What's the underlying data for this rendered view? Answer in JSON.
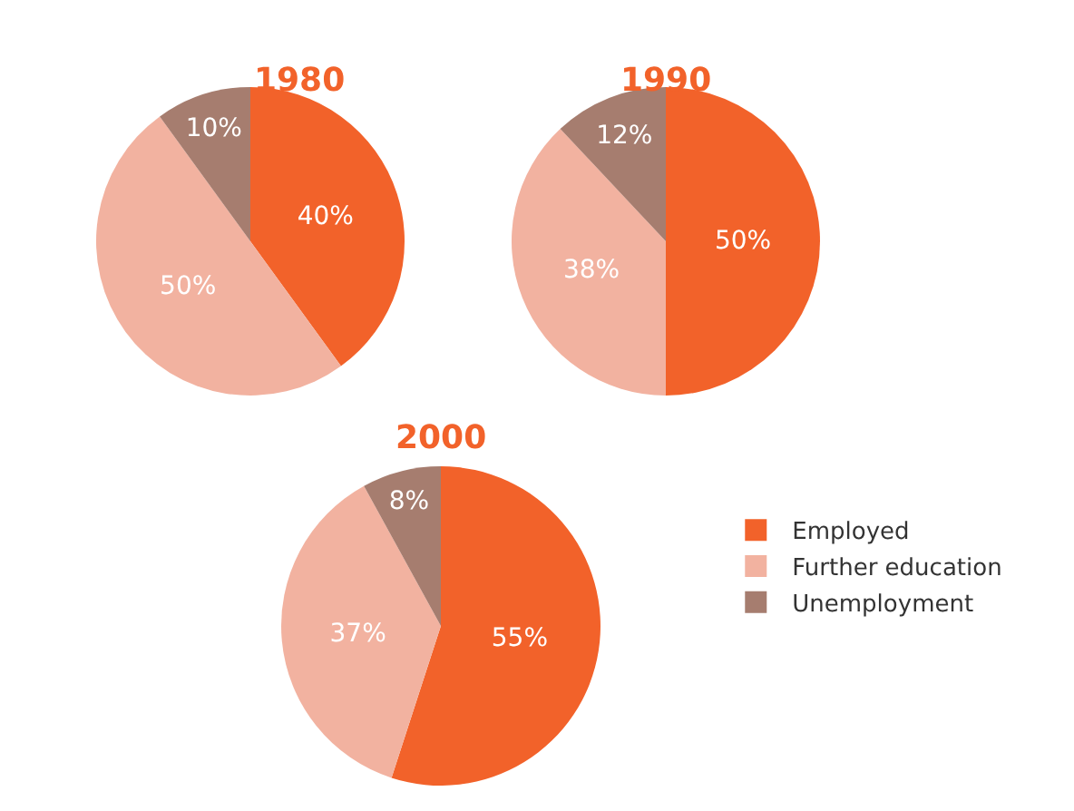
{
  "chart_data": [
    {
      "type": "pie",
      "title": "1980",
      "categories": [
        "Employed",
        "Further education",
        "Unemployment"
      ],
      "values": [
        40,
        50,
        10
      ],
      "value_labels": [
        "40%",
        "50%",
        "10%"
      ],
      "colors": [
        "#f2622a",
        "#f2b2a0",
        "#a67d6f"
      ],
      "legend": "bottom right"
    },
    {
      "type": "pie",
      "title": "1990",
      "categories": [
        null,
        null,
        null
      ],
      "values": [
        50,
        38,
        12
      ],
      "value_labels": [
        "50%",
        "38%",
        "12%"
      ],
      "colors": [
        "#f2622a",
        "#f2b2a0",
        "#a67d6f"
      ]
    },
    {
      "type": "pie",
      "title": "2000",
      "categories": [
        null,
        null,
        null
      ],
      "values": [
        55,
        37,
        8
      ],
      "value_labels": [
        "55%",
        "37%",
        "8%"
      ],
      "colors": [
        "#f2622a",
        "#f2b2a0",
        "#a67d6f"
      ]
    }
  ]
}
